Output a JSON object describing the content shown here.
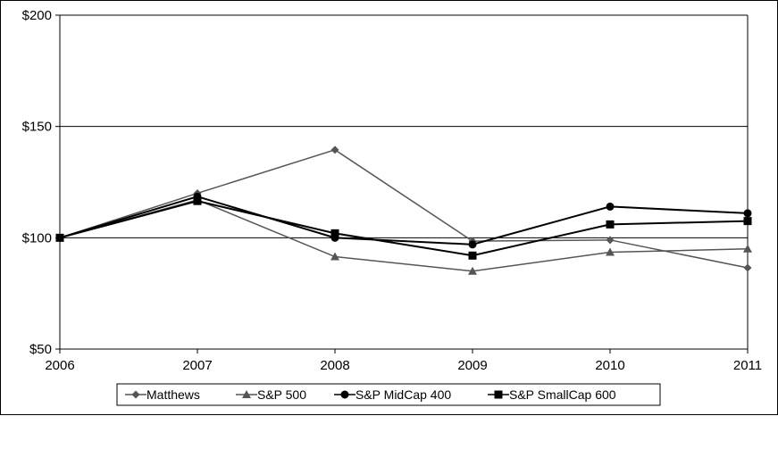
{
  "chart_data": {
    "type": "line",
    "title": "",
    "xlabel": "",
    "ylabel": "",
    "categories": [
      "2006",
      "2007",
      "2008",
      "2009",
      "2010",
      "2011"
    ],
    "ylim": [
      50,
      200
    ],
    "yticks": [
      50,
      100,
      150,
      200
    ],
    "ytick_labels": [
      "$50",
      "$100",
      "$150",
      "$200"
    ],
    "gridlines": "horizontal at $100 and $150",
    "legend_position": "bottom",
    "series": [
      {
        "name": "Matthews",
        "marker": "diamond",
        "color": "#555555",
        "values": [
          100,
          120,
          139.5,
          98.5,
          99,
          86.5
        ]
      },
      {
        "name": "S&P 500",
        "marker": "triangle",
        "color": "#555555",
        "values": [
          100,
          117,
          91.5,
          85,
          93.5,
          95
        ]
      },
      {
        "name": "S&P MidCap 400",
        "marker": "circle",
        "color": "#000000",
        "values": [
          100,
          118.5,
          100,
          97,
          114,
          111
        ]
      },
      {
        "name": "S&P SmallCap 600",
        "marker": "square",
        "color": "#000000",
        "values": [
          100,
          116.5,
          102,
          92,
          106,
          107.5
        ]
      }
    ]
  }
}
